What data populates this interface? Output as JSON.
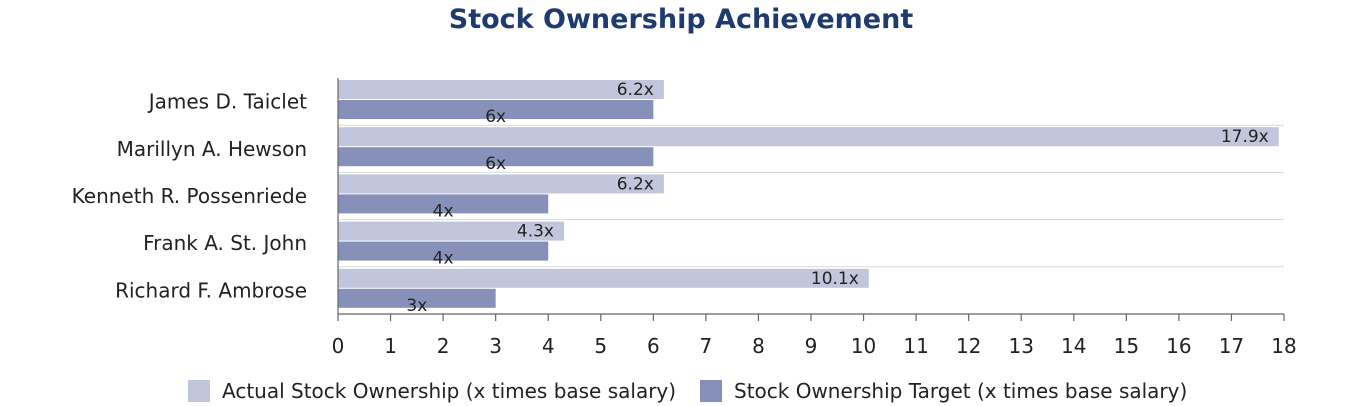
{
  "chart_data": {
    "type": "bar",
    "orientation": "horizontal",
    "title": "Stock Ownership Achievement",
    "categories": [
      "James D. Taiclet",
      "Marillyn A. Hewson",
      "Kenneth R. Possenriede",
      "Frank A. St. John",
      "Richard F. Ambrose"
    ],
    "series": [
      {
        "name": "Actual Stock Ownership (x times base salary)",
        "values": [
          6.2,
          17.9,
          6.2,
          4.3,
          10.1
        ],
        "labels": [
          "6.2x",
          "17.9x",
          "6.2x",
          "4.3x",
          "10.1x"
        ],
        "color": "#c2c6dc"
      },
      {
        "name": "Stock Ownership Target (x times base salary)",
        "values": [
          6,
          6,
          4,
          4,
          3
        ],
        "labels": [
          "6x",
          "6x",
          "4x",
          "4x",
          "3x"
        ],
        "color": "#8790b8"
      }
    ],
    "xlim": [
      0,
      18
    ],
    "xticks": [
      "0",
      "1",
      "2",
      "3",
      "4",
      "5",
      "6",
      "7",
      "8",
      "9",
      "10",
      "11",
      "12",
      "13",
      "14",
      "15",
      "16",
      "17",
      "18"
    ],
    "grid": true,
    "legend_position": "bottom"
  }
}
